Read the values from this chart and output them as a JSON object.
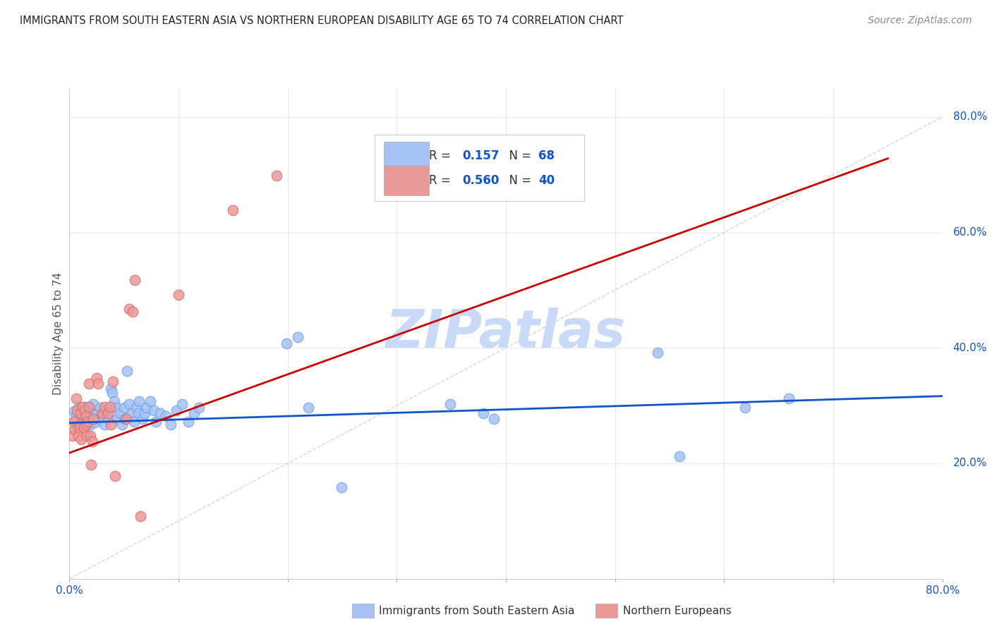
{
  "title": "IMMIGRANTS FROM SOUTH EASTERN ASIA VS NORTHERN EUROPEAN DISABILITY AGE 65 TO 74 CORRELATION CHART",
  "source": "Source: ZipAtlas.com",
  "ylabel": "Disability Age 65 to 74",
  "xmin": 0.0,
  "xmax": 0.8,
  "ymin": 0.0,
  "ymax": 0.85,
  "yticks": [
    0.2,
    0.4,
    0.6,
    0.8
  ],
  "blue_color": "#a4c2f4",
  "blue_edge_color": "#6d9eeb",
  "pink_color": "#ea9999",
  "pink_edge_color": "#e06666",
  "blue_line_color": "#1155cc",
  "pink_line_color": "#cc0000",
  "watermark_color": "#c9daf8",
  "legend_R_blue": "0.157",
  "legend_N_blue": "68",
  "legend_R_pink": "0.560",
  "legend_N_pink": "40",
  "blue_scatter": [
    [
      0.004,
      0.29
    ],
    [
      0.005,
      0.275
    ],
    [
      0.006,
      0.283
    ],
    [
      0.007,
      0.262
    ],
    [
      0.009,
      0.298
    ],
    [
      0.01,
      0.277
    ],
    [
      0.01,
      0.288
    ],
    [
      0.011,
      0.272
    ],
    [
      0.012,
      0.282
    ],
    [
      0.013,
      0.298
    ],
    [
      0.014,
      0.277
    ],
    [
      0.015,
      0.288
    ],
    [
      0.016,
      0.272
    ],
    [
      0.017,
      0.281
    ],
    [
      0.018,
      0.298
    ],
    [
      0.019,
      0.267
    ],
    [
      0.02,
      0.277
    ],
    [
      0.021,
      0.287
    ],
    [
      0.022,
      0.302
    ],
    [
      0.023,
      0.271
    ],
    [
      0.025,
      0.286
    ],
    [
      0.027,
      0.277
    ],
    [
      0.028,
      0.297
    ],
    [
      0.03,
      0.282
    ],
    [
      0.032,
      0.267
    ],
    [
      0.033,
      0.291
    ],
    [
      0.036,
      0.277
    ],
    [
      0.038,
      0.33
    ],
    [
      0.039,
      0.322
    ],
    [
      0.041,
      0.308
    ],
    [
      0.043,
      0.297
    ],
    [
      0.044,
      0.277
    ],
    [
      0.046,
      0.287
    ],
    [
      0.048,
      0.267
    ],
    [
      0.05,
      0.297
    ],
    [
      0.051,
      0.277
    ],
    [
      0.053,
      0.36
    ],
    [
      0.055,
      0.302
    ],
    [
      0.057,
      0.287
    ],
    [
      0.059,
      0.272
    ],
    [
      0.061,
      0.297
    ],
    [
      0.063,
      0.287
    ],
    [
      0.064,
      0.308
    ],
    [
      0.067,
      0.277
    ],
    [
      0.069,
      0.287
    ],
    [
      0.071,
      0.297
    ],
    [
      0.074,
      0.308
    ],
    [
      0.077,
      0.292
    ],
    [
      0.079,
      0.272
    ],
    [
      0.083,
      0.287
    ],
    [
      0.088,
      0.282
    ],
    [
      0.093,
      0.267
    ],
    [
      0.098,
      0.292
    ],
    [
      0.103,
      0.302
    ],
    [
      0.109,
      0.272
    ],
    [
      0.114,
      0.287
    ],
    [
      0.119,
      0.297
    ],
    [
      0.199,
      0.408
    ],
    [
      0.209,
      0.418
    ],
    [
      0.219,
      0.297
    ],
    [
      0.249,
      0.158
    ],
    [
      0.349,
      0.302
    ],
    [
      0.379,
      0.287
    ],
    [
      0.389,
      0.277
    ],
    [
      0.539,
      0.392
    ],
    [
      0.559,
      0.212
    ],
    [
      0.619,
      0.297
    ],
    [
      0.659,
      0.312
    ]
  ],
  "pink_scatter": [
    [
      0.003,
      0.248
    ],
    [
      0.004,
      0.272
    ],
    [
      0.005,
      0.258
    ],
    [
      0.006,
      0.312
    ],
    [
      0.007,
      0.292
    ],
    [
      0.008,
      0.248
    ],
    [
      0.009,
      0.262
    ],
    [
      0.01,
      0.287
    ],
    [
      0.01,
      0.267
    ],
    [
      0.011,
      0.242
    ],
    [
      0.012,
      0.298
    ],
    [
      0.013,
      0.262
    ],
    [
      0.014,
      0.292
    ],
    [
      0.015,
      0.282
    ],
    [
      0.015,
      0.267
    ],
    [
      0.016,
      0.248
    ],
    [
      0.017,
      0.272
    ],
    [
      0.018,
      0.338
    ],
    [
      0.018,
      0.298
    ],
    [
      0.019,
      0.248
    ],
    [
      0.02,
      0.198
    ],
    [
      0.021,
      0.238
    ],
    [
      0.022,
      0.277
    ],
    [
      0.025,
      0.348
    ],
    [
      0.026,
      0.338
    ],
    [
      0.03,
      0.287
    ],
    [
      0.032,
      0.298
    ],
    [
      0.035,
      0.287
    ],
    [
      0.037,
      0.298
    ],
    [
      0.038,
      0.267
    ],
    [
      0.04,
      0.342
    ],
    [
      0.042,
      0.178
    ],
    [
      0.052,
      0.277
    ],
    [
      0.055,
      0.468
    ],
    [
      0.058,
      0.462
    ],
    [
      0.06,
      0.518
    ],
    [
      0.065,
      0.108
    ],
    [
      0.1,
      0.492
    ],
    [
      0.15,
      0.638
    ],
    [
      0.19,
      0.698
    ]
  ],
  "blue_line_y_intercept": 0.27,
  "blue_line_slope": 0.058,
  "pink_line_y_intercept": 0.218,
  "pink_line_slope": 0.68,
  "background_color": "#ffffff",
  "grid_color": "#e8e8e8"
}
